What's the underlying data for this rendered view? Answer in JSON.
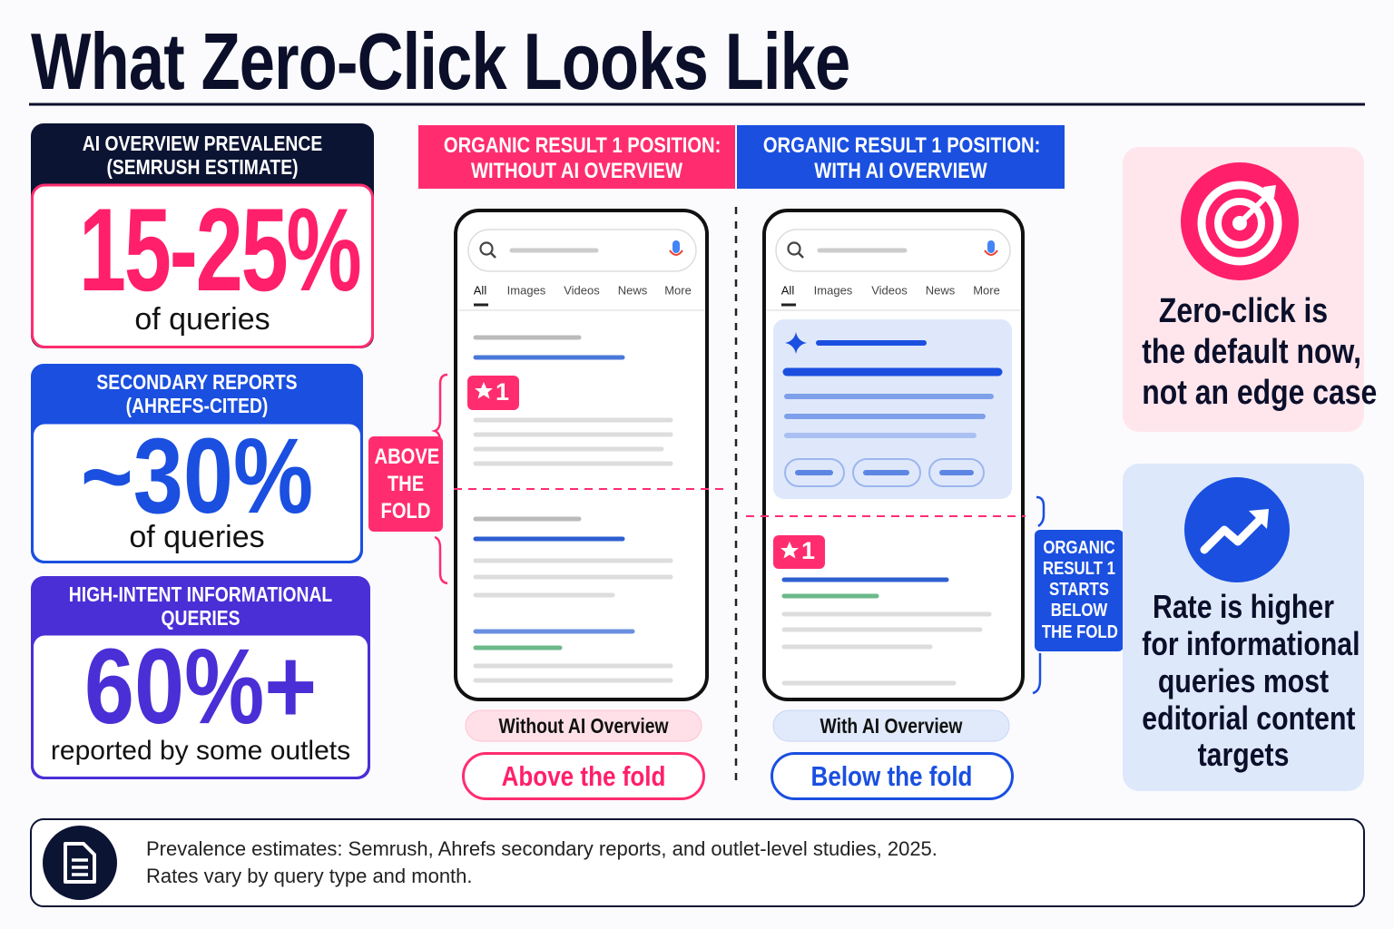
{
  "title": "What Zero-Click Looks Like",
  "stats": [
    {
      "header": [
        "AI OVERVIEW PREVALENCE",
        "(SEMRUSH ESTIMATE)"
      ],
      "value": "15-25%",
      "caption": "of queries"
    },
    {
      "header": [
        "SECONDARY REPORTS",
        "(AHREFS-CITED)"
      ],
      "value": "~30%",
      "caption": "of queries"
    },
    {
      "header": [
        "HIGH-INTENT INFORMATIONAL",
        "QUERIES"
      ],
      "value": "60%+",
      "caption": "reported by some outlets"
    }
  ],
  "comparison": {
    "columns": [
      {
        "header": [
          "ORGANIC RESULT 1 POSITION:",
          "WITHOUT AI OVERVIEW"
        ],
        "badge": "1",
        "label": "Without AI Overview",
        "result": "Above the fold"
      },
      {
        "header": [
          "ORGANIC RESULT 1 POSITION:",
          "WITH AI OVERVIEW"
        ],
        "badge": "1",
        "label": "With AI Overview",
        "result": "Below the fold"
      }
    ],
    "search_tabs": [
      "All",
      "Images",
      "Videos",
      "News",
      "More"
    ],
    "fold_labels": [
      [
        "ABOVE",
        "THE",
        "FOLD"
      ],
      [
        "ORGANIC",
        "RESULT 1",
        "STARTS",
        "BELOW",
        "THE FOLD"
      ]
    ]
  },
  "insights": [
    {
      "lines": [
        "Zero-click is",
        "the default now,",
        "not an edge case"
      ]
    },
    {
      "lines": [
        "Rate is higher",
        "for informational",
        "queries most",
        "editorial content",
        "targets"
      ]
    }
  ],
  "footnote": [
    "Prevalence estimates: Semrush, Ahrefs secondary reports, and outlet-level studies, 2025.",
    "Rates vary by query type and month."
  ]
}
